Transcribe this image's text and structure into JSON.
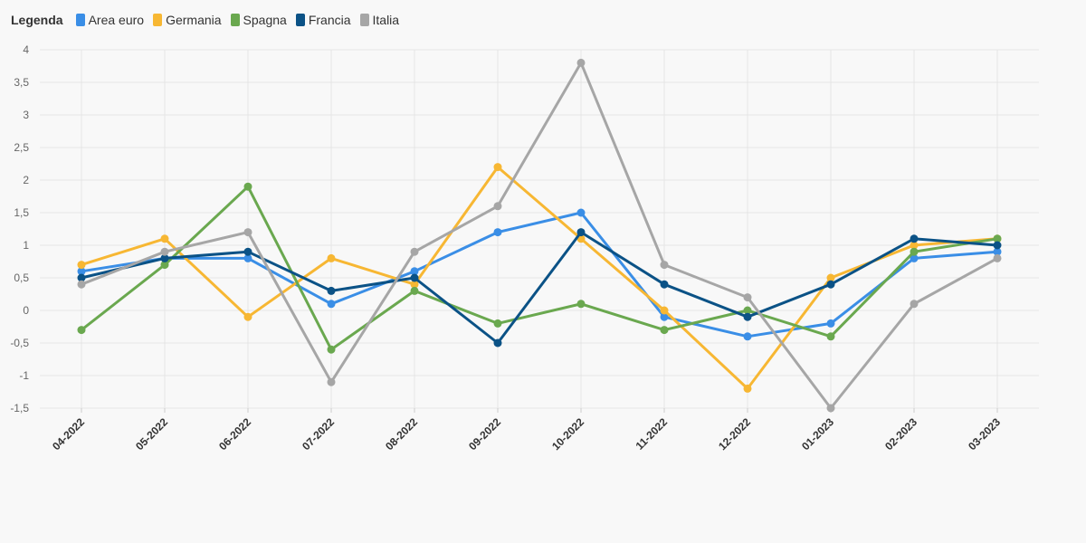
{
  "legend": {
    "title": "Legenda"
  },
  "chart_data": {
    "type": "line",
    "title": "",
    "xlabel": "",
    "ylabel": "",
    "categories": [
      "04-2022",
      "05-2022",
      "06-2022",
      "07-2022",
      "08-2022",
      "09-2022",
      "10-2022",
      "11-2022",
      "12-2022",
      "01-2023",
      "02-2023",
      "03-2023"
    ],
    "ylim": [
      -1.5,
      4
    ],
    "yticks": [
      "-1,5",
      "-1",
      "-0,5",
      "0",
      "0,5",
      "1",
      "1,5",
      "2",
      "2,5",
      "3",
      "3,5",
      "4"
    ],
    "grid": true,
    "legend_position": "top-left",
    "series": [
      {
        "name": "Area euro",
        "color": "#3a8ee6",
        "values": [
          0.6,
          0.8,
          0.8,
          0.1,
          0.6,
          1.2,
          1.5,
          -0.1,
          -0.4,
          -0.2,
          0.8,
          0.9
        ]
      },
      {
        "name": "Germania",
        "color": "#f7b733",
        "values": [
          0.7,
          1.1,
          -0.1,
          0.8,
          0.4,
          2.2,
          1.1,
          0.0,
          -1.2,
          0.5,
          1.0,
          1.1
        ]
      },
      {
        "name": "Spagna",
        "color": "#6aa84f",
        "values": [
          -0.3,
          0.7,
          1.9,
          -0.6,
          0.3,
          -0.2,
          0.1,
          -0.3,
          0.0,
          -0.4,
          0.9,
          1.1
        ]
      },
      {
        "name": "Francia",
        "color": "#0b5286",
        "values": [
          0.5,
          0.8,
          0.9,
          0.3,
          0.5,
          -0.5,
          1.2,
          0.4,
          -0.1,
          0.4,
          1.1,
          1.0
        ]
      },
      {
        "name": "Italia",
        "color": "#a6a6a6",
        "values": [
          0.4,
          0.9,
          1.2,
          -1.1,
          0.9,
          1.6,
          3.8,
          0.7,
          0.2,
          -1.5,
          0.1,
          0.8
        ]
      }
    ]
  }
}
